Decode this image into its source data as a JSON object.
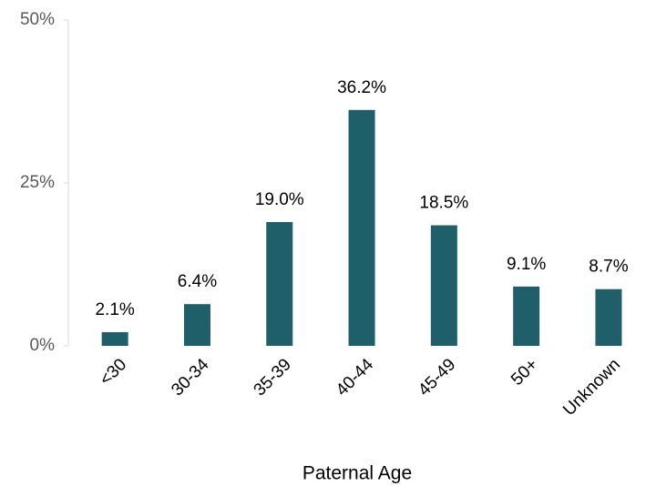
{
  "chart_data": {
    "type": "bar",
    "xlabel": "Paternal Age",
    "categories": [
      "<30",
      "30-34",
      "35-39",
      "40-44",
      "45-49",
      "50+",
      "Unknown"
    ],
    "values": [
      2.1,
      6.4,
      19.0,
      36.2,
      18.5,
      9.1,
      8.7
    ],
    "value_labels": [
      "2.1%",
      "6.4%",
      "19.0%",
      "36.2%",
      "18.5%",
      "9.1%",
      "8.7%"
    ],
    "color": "#1e5f6a",
    "ylim": [
      0,
      50
    ],
    "yticks": [
      {
        "value": 0,
        "label": "0%"
      },
      {
        "value": 25,
        "label": "25%"
      },
      {
        "value": 50,
        "label": "50%"
      }
    ],
    "grid": false
  }
}
